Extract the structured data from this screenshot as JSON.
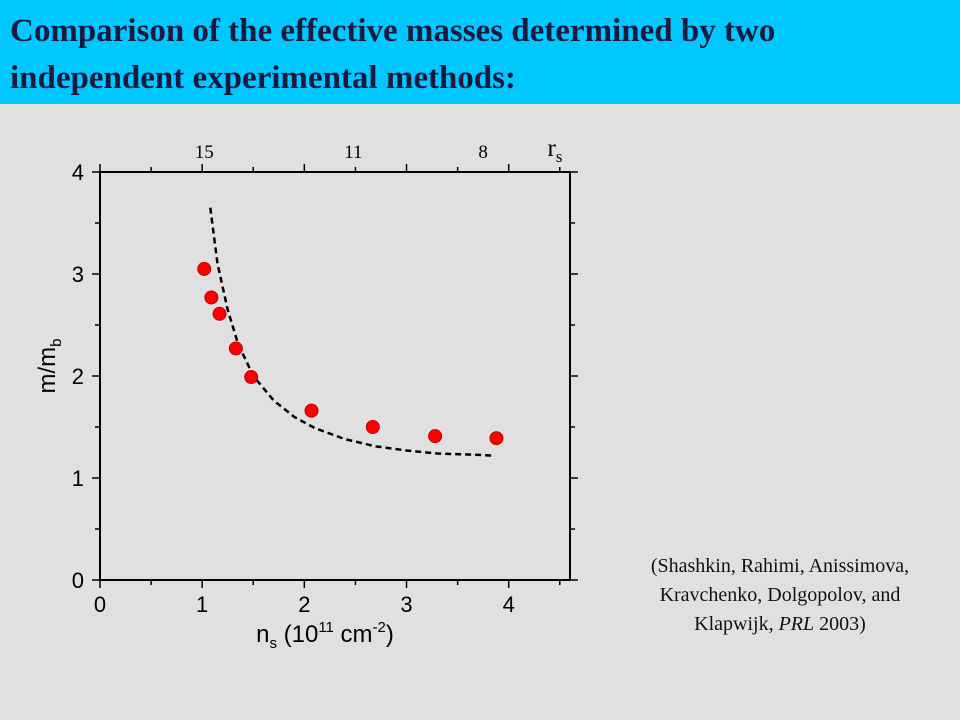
{
  "header": {
    "title": "Comparison of the effective masses determined by two independent experimental methods:"
  },
  "citation": {
    "line1": "(Shashkin, Rahimi, Anissimova,",
    "line2": "Kravchenko, Dolgopolov, and",
    "line3_prefix": "Klapwijk, ",
    "line3_journal": "PRL",
    "line3_suffix": " 2003)"
  },
  "colors": {
    "header_bg": "#00c8ff",
    "page_bg": "#e0e0e0",
    "point_fill": "#ff0000"
  },
  "chart_data": {
    "type": "scatter",
    "title": "",
    "xlabel": {
      "base": "n",
      "sub": "s",
      "pre": " (10",
      "sup1": "11",
      "mid": " cm",
      "sup2": "-2",
      "post": ")"
    },
    "ylabel": {
      "base": "m/m",
      "sub": "b"
    },
    "xlim": [
      0,
      4.6
    ],
    "ylim": [
      0,
      4
    ],
    "x_ticks": [
      0,
      1,
      2,
      3,
      4
    ],
    "y_ticks": [
      0,
      1,
      2,
      3,
      4
    ],
    "top_axis": {
      "label": {
        "base": "r",
        "sub": "s"
      },
      "ticks": [
        {
          "label": "15",
          "x": 1.02
        },
        {
          "label": "11",
          "x": 2.48
        },
        {
          "label": "8",
          "x": 3.75
        }
      ]
    },
    "grid": false,
    "series": [
      {
        "style": "markers",
        "x": [
          1.02,
          1.09,
          1.17,
          1.33,
          1.48,
          2.07,
          2.67,
          3.28,
          3.88
        ],
        "y": [
          3.05,
          2.77,
          2.61,
          2.27,
          1.99,
          1.66,
          1.5,
          1.41,
          1.39
        ]
      },
      {
        "style": "dashed-line",
        "x": [
          1.08,
          1.15,
          1.25,
          1.35,
          1.5,
          1.7,
          1.9,
          2.1,
          2.4,
          2.7,
          3.0,
          3.3,
          3.6,
          3.86
        ],
        "y": [
          3.65,
          3.1,
          2.65,
          2.32,
          2.0,
          1.76,
          1.6,
          1.49,
          1.38,
          1.31,
          1.27,
          1.24,
          1.23,
          1.22
        ]
      }
    ]
  }
}
